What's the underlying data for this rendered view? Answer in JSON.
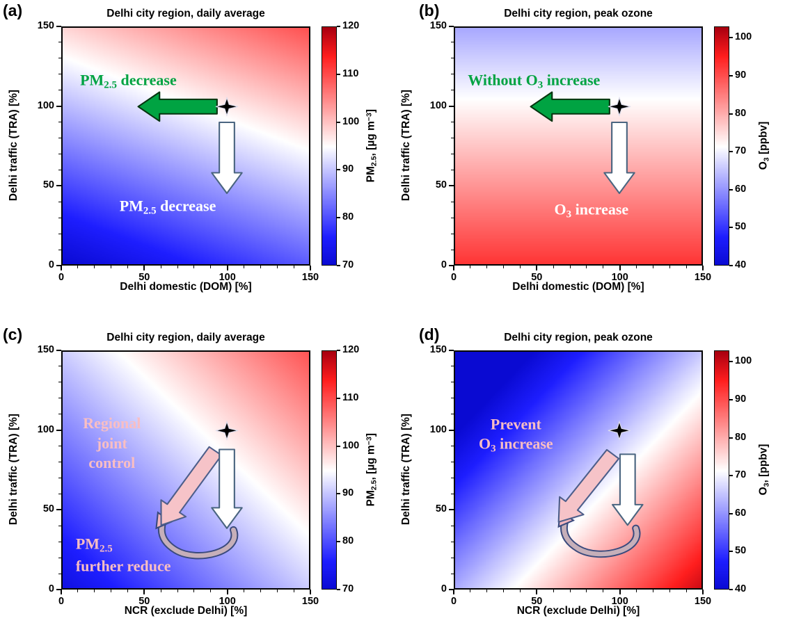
{
  "figure": {
    "background": "#ffffff"
  },
  "colormap_stops": [
    [
      0,
      [
        10,
        10,
        210
      ]
    ],
    [
      0.12,
      [
        30,
        30,
        255
      ]
    ],
    [
      0.5,
      [
        255,
        255,
        255
      ]
    ],
    [
      0.88,
      [
        255,
        30,
        30
      ]
    ],
    [
      1,
      [
        170,
        0,
        16
      ]
    ]
  ],
  "chart_data": [
    {
      "type": "heatmap",
      "panel_label": "(a)",
      "title": "Delhi city region, daily average",
      "xlabel": "Delhi domestic (DOM) [%]",
      "ylabel": "Delhi traffic (TRA) [%]",
      "xlim": [
        0,
        150
      ],
      "ylim": [
        0,
        150
      ],
      "x_ticks": [
        0,
        50,
        100,
        150
      ],
      "y_ticks": [
        0,
        50,
        100,
        150
      ],
      "colorbar": {
        "label_segments": [
          {
            "t": "PM"
          },
          {
            "t": "2.5",
            "sub": true
          },
          {
            "t": ", [µg m"
          },
          {
            "t": "−3",
            "sup": true
          },
          {
            "t": "]"
          }
        ],
        "units": "µg m-3",
        "ticks": [
          70,
          80,
          90,
          100,
          110,
          120
        ],
        "vmin": 70,
        "vmax": 120
      },
      "value_model": {
        "v00": 70,
        "dx": 0.075,
        "dy": 0.19,
        "description": "PM2.5 estimated as 70 + 0.075*DOM% + 0.19*TRA%"
      },
      "grid_sample": {
        "x": [
          0,
          50,
          100,
          150
        ],
        "y_bottom_to_top": [
          0,
          50,
          100,
          150
        ],
        "values": [
          [
            70,
            73.8,
            77.5,
            81.3
          ],
          [
            79.5,
            83.3,
            87,
            90.8
          ],
          [
            89,
            92.8,
            96.5,
            100.3
          ],
          [
            98.5,
            102.3,
            106,
            109.8
          ]
        ]
      },
      "annotations": [
        {
          "kind": "text",
          "x": 40,
          "y": 116,
          "size": 22,
          "color": "#00A342",
          "lines": [
            [
              {
                "t": "PM"
              },
              {
                "t": "2.5",
                "sub": true
              },
              {
                "t": " decrease"
              }
            ]
          ]
        },
        {
          "kind": "arrow",
          "from": [
            94,
            100
          ],
          "to": [
            46,
            100
          ],
          "shaft": 4.6,
          "head_w": 9.2,
          "head_l": 13,
          "fill": "#00A342",
          "stroke": "#04340F"
        },
        {
          "kind": "arrow",
          "from": [
            100,
            90
          ],
          "to": [
            100,
            45
          ],
          "shaft": 4.6,
          "head_w": 9.2,
          "head_l": 13,
          "fill": "#FFFFFF",
          "stroke": "#4A6580"
        },
        {
          "kind": "star",
          "x": 100,
          "y": 100
        },
        {
          "kind": "text",
          "x": 64,
          "y": 36,
          "size": 22,
          "color": "#FFFFFF",
          "lines": [
            [
              {
                "t": "PM"
              },
              {
                "t": "2.5",
                "sub": true
              },
              {
                "t": " decrease"
              }
            ]
          ]
        }
      ]
    },
    {
      "type": "heatmap",
      "panel_label": "(b)",
      "title": "Delhi city region, peak ozone",
      "xlabel": "Delhi domestic (DOM) [%]",
      "ylabel": "Delhi traffic (TRA) [%]",
      "xlim": [
        0,
        150
      ],
      "ylim": [
        0,
        150
      ],
      "x_ticks": [
        0,
        50,
        100,
        150
      ],
      "y_ticks": [
        0,
        50,
        100,
        150
      ],
      "colorbar": {
        "label_segments": [
          {
            "t": "O"
          },
          {
            "t": "3",
            "sub": true
          },
          {
            "t": " [ppbv]"
          }
        ],
        "units": "ppbv",
        "ticks": [
          40,
          50,
          60,
          70,
          80,
          90,
          100
        ],
        "vmin": 40,
        "vmax": 103
      },
      "value_model": {
        "v00": 93,
        "dx": 0,
        "dy": -0.205,
        "description": "O3 estimated as 93 - 0.205*TRA% (nearly independent of DOM%)"
      },
      "grid_sample": {
        "x": [
          0,
          50,
          100,
          150
        ],
        "y_bottom_to_top": [
          0,
          50,
          100,
          150
        ],
        "values": [
          [
            93,
            93,
            93,
            93
          ],
          [
            82.8,
            82.8,
            82.8,
            82.8
          ],
          [
            72.5,
            72.5,
            72.5,
            72.5
          ],
          [
            62.3,
            62.3,
            62.3,
            62.3
          ]
        ]
      },
      "annotations": [
        {
          "kind": "text",
          "x": 48,
          "y": 116,
          "size": 22,
          "color": "#00A342",
          "lines": [
            [
              {
                "t": "Without O"
              },
              {
                "t": "3",
                "sub": true
              },
              {
                "t": " increase"
              }
            ]
          ]
        },
        {
          "kind": "arrow",
          "from": [
            94,
            100
          ],
          "to": [
            46,
            100
          ],
          "shaft": 4.6,
          "head_w": 9.2,
          "head_l": 13,
          "fill": "#00A342",
          "stroke": "#04340F"
        },
        {
          "kind": "arrow",
          "from": [
            100,
            90
          ],
          "to": [
            100,
            45
          ],
          "shaft": 4.6,
          "head_w": 9.2,
          "head_l": 13,
          "fill": "#FFFFFF",
          "stroke": "#4A6580"
        },
        {
          "kind": "star",
          "x": 100,
          "y": 100
        },
        {
          "kind": "text",
          "x": 83,
          "y": 34,
          "size": 22,
          "color": "#FFFFFF",
          "lines": [
            [
              {
                "t": "O"
              },
              {
                "t": "3",
                "sub": true
              },
              {
                "t": " increase"
              }
            ]
          ]
        }
      ]
    },
    {
      "type": "heatmap",
      "panel_label": "(c)",
      "title": "Delhi city region, daily average",
      "xlabel": "NCR (exclude Delhi) [%]",
      "ylabel": "Delhi traffic (TRA) [%]",
      "xlim": [
        0,
        150
      ],
      "ylim": [
        0,
        150
      ],
      "x_ticks": [
        0,
        50,
        100,
        150
      ],
      "y_ticks": [
        0,
        50,
        100,
        150
      ],
      "colorbar": {
        "label_segments": [
          {
            "t": "PM"
          },
          {
            "t": "2.5",
            "sub": true
          },
          {
            "t": ", [µg m"
          },
          {
            "t": "−3",
            "sup": true
          },
          {
            "t": "]"
          }
        ],
        "units": "µg m-3",
        "ticks": [
          70,
          80,
          90,
          100,
          110,
          120
        ],
        "vmin": 70,
        "vmax": 120
      },
      "value_model": {
        "v00": 72,
        "dx": 0.125,
        "dy": 0.125,
        "description": "PM2.5 estimated as 72 + 0.125*NCR% + 0.125*TRA%"
      },
      "grid_sample": {
        "x": [
          0,
          50,
          100,
          150
        ],
        "y_bottom_to_top": [
          0,
          50,
          100,
          150
        ],
        "values": [
          [
            72,
            78.3,
            84.5,
            90.8
          ],
          [
            78.3,
            84.5,
            90.8,
            97
          ],
          [
            84.5,
            90.8,
            97,
            103.3
          ],
          [
            90.8,
            97,
            103.3,
            109.5
          ]
        ]
      },
      "annotations": [
        {
          "kind": "text",
          "x": 30,
          "y": 92,
          "size": 22,
          "color": "#F9BEC3",
          "lines": [
            [
              {
                "t": "Regional"
              }
            ],
            [
              {
                "t": "joint"
              }
            ],
            [
              {
                "t": "control"
              }
            ]
          ]
        },
        {
          "kind": "curve",
          "points": [
            [
              104,
              37
            ],
            [
              109,
              23
            ],
            [
              82,
              16
            ],
            [
              69,
              24
            ],
            [
              61,
              29
            ],
            [
              59,
              35
            ],
            [
              61,
              42
            ]
          ],
          "head": [
            [
              58,
              48
            ],
            [
              57,
              38
            ],
            [
              66,
              42
            ]
          ],
          "stroke_outer": "#3A4A7D",
          "stroke_inner": "#C6AFB9",
          "head_fill": "#F2B6BE"
        },
        {
          "kind": "arrow",
          "from": [
            93,
            87
          ],
          "to": [
            60,
            40
          ],
          "shaft": 4.6,
          "head_w": 9.2,
          "head_l": 13,
          "fill": "#F6C3C8",
          "stroke": "#4D5E8A"
        },
        {
          "kind": "arrow",
          "from": [
            100,
            88
          ],
          "to": [
            100,
            38
          ],
          "shaft": 4.6,
          "head_w": 9.2,
          "head_l": 13,
          "fill": "#FFFFFF",
          "stroke": "#4A6580"
        },
        {
          "kind": "star",
          "x": 100,
          "y": 100
        },
        {
          "kind": "text",
          "x": 8,
          "y": 21,
          "size": 22,
          "color": "#F9BEC3",
          "align": "left",
          "lines": [
            [
              {
                "t": "PM"
              },
              {
                "t": "2.5",
                "sub": true
              }
            ],
            [
              {
                "t": "further reduce"
              }
            ]
          ]
        }
      ]
    },
    {
      "type": "heatmap",
      "panel_label": "(d)",
      "title": "Delhi city region, peak ozone",
      "xlabel": "NCR (exclude Delhi) [%]",
      "ylabel": "Delhi traffic (TRA) [%]",
      "xlim": [
        0,
        150
      ],
      "ylim": [
        0,
        150
      ],
      "x_ticks": [
        0,
        50,
        100,
        150
      ],
      "y_ticks": [
        0,
        50,
        100,
        150
      ],
      "colorbar": {
        "label_segments": [
          {
            "t": "O"
          },
          {
            "t": "3",
            "sub": true
          },
          {
            "t": ", [ppbv]"
          }
        ],
        "units": "ppbv",
        "ticks": [
          40,
          50,
          60,
          70,
          80,
          90,
          100
        ],
        "vmin": 40,
        "vmax": 103
      },
      "value_model": {
        "v00": 62.5,
        "dx": 0.25,
        "dy": -0.229,
        "description": "O3 estimated as 62.5 + 0.25*NCR% - 0.229*TRA%"
      },
      "grid_sample": {
        "x": [
          0,
          50,
          100,
          150
        ],
        "y_bottom_to_top": [
          0,
          50,
          100,
          150
        ],
        "values": [
          [
            62.5,
            75,
            87.5,
            100
          ],
          [
            51.1,
            63.6,
            76.1,
            88.6
          ],
          [
            39.6,
            52.1,
            64.6,
            77.1
          ],
          [
            28.2,
            40.7,
            53.2,
            65.7
          ]
        ]
      },
      "annotations": [
        {
          "kind": "text",
          "x": 37,
          "y": 97,
          "size": 22,
          "color": "#F9BEC3",
          "lines": [
            [
              {
                "t": "Prevent"
              }
            ],
            [
              {
                "t": "O"
              },
              {
                "t": "3",
                "sub": true
              },
              {
                "t": " increase"
              }
            ]
          ]
        },
        {
          "kind": "curve",
          "points": [
            [
              110,
              38
            ],
            [
              115,
              24
            ],
            [
              88,
              17
            ],
            [
              75,
              25
            ],
            [
              67,
              30
            ],
            [
              65,
              36
            ],
            [
              67,
              43
            ]
          ],
          "head": [
            [
              64,
              49
            ],
            [
              63,
              39
            ],
            [
              72,
              43
            ]
          ],
          "stroke_outer": "#3A4A7D",
          "stroke_inner": "#C6AFB9",
          "head_fill": "#F2B6BE"
        },
        {
          "kind": "arrow",
          "from": [
            96,
            85
          ],
          "to": [
            63,
            42
          ],
          "shaft": 4.6,
          "head_w": 9.2,
          "head_l": 13,
          "fill": "#F6C3C8",
          "stroke": "#4D5E8A"
        },
        {
          "kind": "arrow",
          "from": [
            105,
            85
          ],
          "to": [
            105,
            40
          ],
          "shaft": 4.6,
          "head_w": 9.2,
          "head_l": 13,
          "fill": "#FFFFFF",
          "stroke": "#4A6580"
        },
        {
          "kind": "star",
          "x": 100,
          "y": 100
        }
      ]
    }
  ]
}
